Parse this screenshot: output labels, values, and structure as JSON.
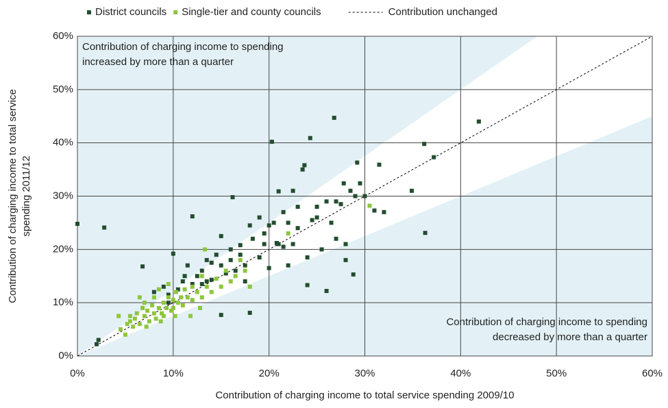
{
  "chart_data": {
    "type": "scatter",
    "xlabel": "Contribution of charging income to total service spending 2009/10",
    "ylabel": [
      "Contribution of charging income to total service",
      "spending 2011/12"
    ],
    "xlim": [
      0,
      60
    ],
    "ylim": [
      0,
      60
    ],
    "xticks": [
      {
        "value": 0,
        "label": "0%"
      },
      {
        "value": 10,
        "label": "10%"
      },
      {
        "value": 20,
        "label": "20%"
      },
      {
        "value": 30,
        "label": "30%"
      },
      {
        "value": 40,
        "label": "40%"
      },
      {
        "value": 50,
        "label": "50%"
      },
      {
        "value": 60,
        "label": "60%"
      }
    ],
    "yticks": [
      {
        "value": 0,
        "label": "0%"
      },
      {
        "value": 10,
        "label": "10%"
      },
      {
        "value": 20,
        "label": "20%"
      },
      {
        "value": 30,
        "label": "30%"
      },
      {
        "value": 40,
        "label": "40%"
      },
      {
        "value": 50,
        "label": "50%"
      },
      {
        "value": 60,
        "label": "60%"
      }
    ],
    "grid": true,
    "band_ratios": [
      0.75,
      1.25
    ],
    "band_color": "#e3f1f6",
    "reference_line": {
      "name": "Contribution unchanged",
      "color": "#000000"
    },
    "annotations": [
      [
        "Contribution of charging income to spending",
        "increased by more than a quarter"
      ],
      [
        "Contribution of charging income to spending",
        "decreased by more than a quarter"
      ]
    ],
    "series": [
      {
        "name": "District councils",
        "color": "#234d2f",
        "x": [
          0,
          2.8,
          2,
          2.2,
          6.8,
          8,
          9,
          9.5,
          10,
          10.5,
          11,
          11.5,
          12,
          12,
          12.5,
          13,
          13.5,
          13.5,
          14,
          14.5,
          15,
          15,
          15.5,
          16,
          16.2,
          16.5,
          17,
          17,
          17.5,
          18,
          18,
          18.3,
          19,
          19,
          19.5,
          20,
          20,
          20.3,
          20.5,
          21,
          21,
          21.5,
          22,
          22,
          22.5,
          22.5,
          23,
          23,
          23.5,
          23.7,
          24,
          24,
          24.3,
          24.5,
          25,
          25.5,
          26,
          26,
          26.5,
          26.8,
          27,
          27,
          27.5,
          27.8,
          28,
          28,
          28.5,
          28.8,
          29,
          29.2,
          29.5,
          30,
          31,
          31.5,
          32,
          34.9,
          36.2,
          36.3,
          37.2,
          41.9,
          14,
          16,
          17.5,
          19.5,
          21.5,
          11.2,
          13,
          15,
          9.5,
          20.8,
          25
        ],
        "values": [
          24.8,
          24.1,
          2.2,
          3,
          16.8,
          12,
          13,
          11.5,
          19.2,
          12.5,
          14,
          17,
          26.2,
          13.5,
          15,
          16,
          14,
          18,
          17.5,
          19,
          17,
          22.5,
          15.5,
          18,
          29.8,
          16,
          20.8,
          19,
          14,
          24.5,
          8.1,
          22,
          18.5,
          26,
          23,
          24.5,
          16.5,
          40.2,
          25,
          30.9,
          21,
          27,
          17,
          25,
          31,
          21,
          24,
          28,
          35,
          35.8,
          13.3,
          18.5,
          40.9,
          25.5,
          28,
          20,
          12.2,
          29,
          25,
          44.7,
          29,
          22,
          28.5,
          32.4,
          21,
          18,
          31,
          15.3,
          30,
          36.3,
          32.4,
          30,
          27.3,
          35.9,
          27,
          31,
          39.8,
          23.1,
          37.3,
          44,
          14.3,
          20,
          17,
          21,
          20.5,
          15,
          13.5,
          7.7,
          10,
          21.2,
          26
        ]
      },
      {
        "name": "Single-tier and county councils",
        "color": "#8dc63f",
        "x": [
          4.3,
          4.5,
          5,
          5.2,
          5.5,
          5.8,
          6,
          6.2,
          6.5,
          6.8,
          7,
          7,
          7.3,
          7.5,
          7.8,
          8,
          8,
          8.2,
          8.5,
          8.5,
          8.8,
          9,
          9,
          9.3,
          9.5,
          9.8,
          10,
          10,
          10.3,
          10.5,
          10.8,
          11,
          11.2,
          11.5,
          12,
          12,
          12.5,
          13,
          13,
          13.3,
          13.5,
          14,
          14.5,
          15,
          15.5,
          16,
          16.5,
          17,
          17.5,
          18,
          22,
          30.5,
          6.5,
          5.5,
          7.2,
          8.7,
          9.5,
          11.8,
          12.8,
          10.2
        ],
        "values": [
          7.5,
          5,
          4,
          6,
          6.5,
          5.5,
          7,
          8,
          6,
          9,
          7.5,
          10,
          8.5,
          6.5,
          9.5,
          8,
          11,
          7,
          9,
          12.5,
          8,
          10,
          7.5,
          9,
          11,
          8.5,
          10.5,
          9,
          12,
          10,
          11,
          9.5,
          12.5,
          11,
          10.5,
          13,
          12,
          11,
          15,
          20,
          13,
          12,
          14.5,
          13,
          16,
          14,
          15,
          18,
          16,
          13,
          23,
          28.2,
          11,
          7.5,
          5.5,
          6.5,
          13.5,
          7.5,
          9,
          7.5
        ]
      }
    ]
  }
}
